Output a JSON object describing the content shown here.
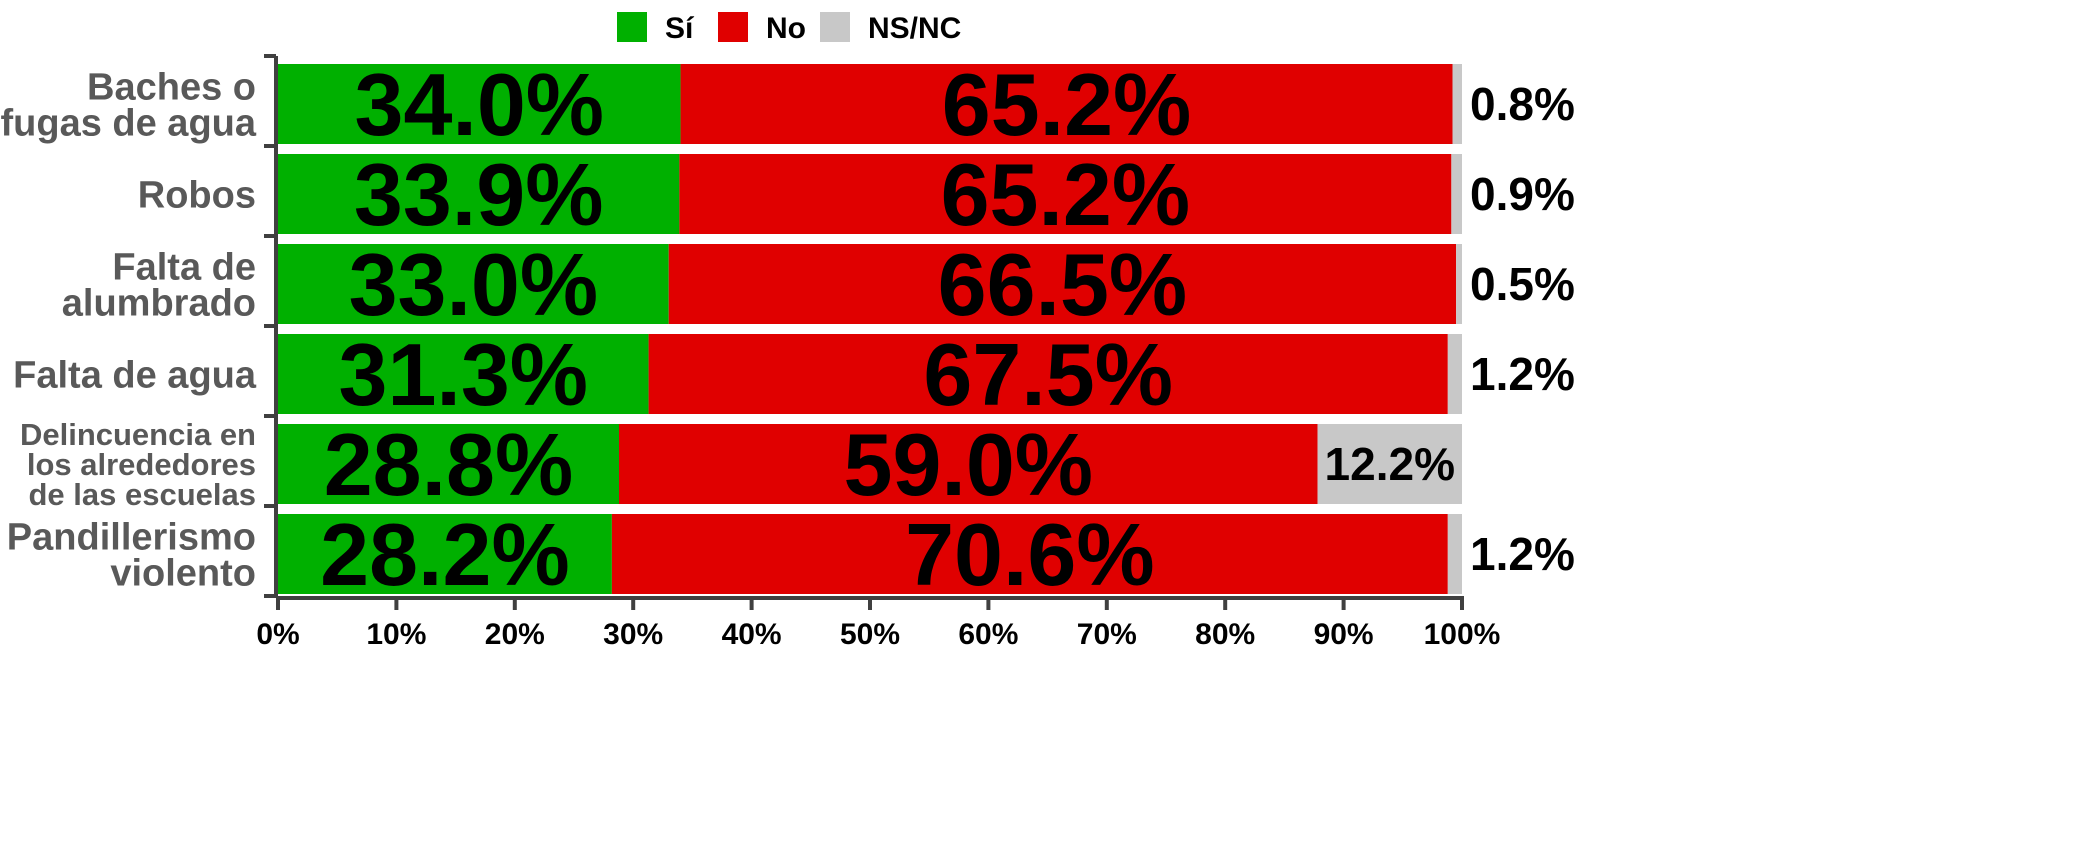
{
  "chart_data": {
    "type": "bar",
    "orientation": "horizontal",
    "stacked": true,
    "percent_stacked": true,
    "categories": [
      [
        "Baches o",
        "fugas de agua"
      ],
      [
        "Robos"
      ],
      [
        "Falta de",
        "alumbrado"
      ],
      [
        "Falta de agua"
      ],
      [
        "Delincuencia en",
        "los alrededores",
        "de las escuelas"
      ],
      [
        "Pandillerismo",
        "violento"
      ]
    ],
    "series": [
      {
        "name": "Sí",
        "color": "#00b000",
        "values": [
          34.0,
          33.9,
          33.0,
          31.3,
          28.8,
          28.2
        ],
        "labels": [
          "34.0%",
          "33.9%",
          "33.0%",
          "31.3%",
          "28.8%",
          "28.2%"
        ]
      },
      {
        "name": "No",
        "color": "#e00000",
        "values": [
          65.2,
          65.2,
          66.5,
          67.5,
          59.0,
          70.6
        ],
        "labels": [
          "65.2%",
          "65.2%",
          "66.5%",
          "67.5%",
          "59.0%",
          "70.6%"
        ]
      },
      {
        "name": "NS/NC",
        "color": "#c8c8c8",
        "values": [
          0.8,
          0.9,
          0.5,
          1.2,
          12.2,
          1.2
        ],
        "labels": [
          "0.8%",
          "0.9%",
          "0.5%",
          "1.2%",
          "12.2%",
          "1.2%"
        ]
      }
    ],
    "xlim": [
      0,
      100
    ],
    "x_ticks": [
      "0%",
      "10%",
      "20%",
      "30%",
      "40%",
      "50%",
      "60%",
      "70%",
      "80%",
      "90%",
      "100%"
    ],
    "legend_position": "top-center",
    "grid": false
  }
}
